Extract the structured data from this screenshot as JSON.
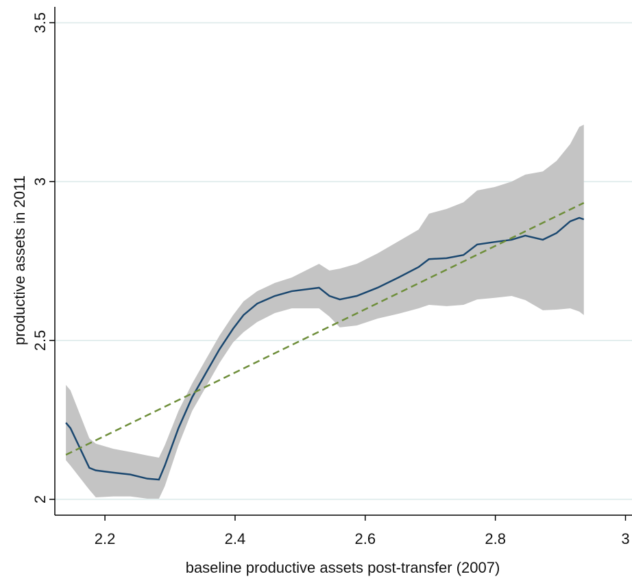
{
  "chart_data": {
    "type": "line",
    "x_label": "baseline productive assets post-transfer (2007)",
    "y_label": "productive assets in 2011",
    "x": [
      2.14,
      2.147,
      2.176,
      2.186,
      2.213,
      2.239,
      2.265,
      2.283,
      2.292,
      2.313,
      2.334,
      2.355,
      2.376,
      2.397,
      2.413,
      2.434,
      2.461,
      2.487,
      2.529,
      2.545,
      2.561,
      2.587,
      2.619,
      2.651,
      2.682,
      2.698,
      2.725,
      2.751,
      2.772,
      2.799,
      2.825,
      2.846,
      2.873,
      2.894,
      2.915,
      2.929,
      2.936
    ],
    "series": [
      {
        "color": "#1a476f",
        "values": [
          2.241,
          2.224,
          2.099,
          2.091,
          2.084,
          2.078,
          2.065,
          2.062,
          2.106,
          2.224,
          2.321,
          2.397,
          2.472,
          2.537,
          2.58,
          2.616,
          2.64,
          2.655,
          2.666,
          2.64,
          2.629,
          2.64,
          2.666,
          2.698,
          2.731,
          2.756,
          2.759,
          2.769,
          2.802,
          2.81,
          2.817,
          2.83,
          2.817,
          2.838,
          2.875,
          2.886,
          2.881
        ]
      }
    ],
    "band": {
      "color": "#c4c4c4",
      "upper": [
        2.36,
        2.343,
        2.192,
        2.175,
        2.159,
        2.149,
        2.138,
        2.131,
        2.17,
        2.278,
        2.364,
        2.44,
        2.515,
        2.58,
        2.623,
        2.655,
        2.681,
        2.698,
        2.741,
        2.72,
        2.726,
        2.741,
        2.774,
        2.812,
        2.849,
        2.899,
        2.914,
        2.935,
        2.972,
        2.983,
        3.0,
        3.022,
        3.032,
        3.065,
        3.118,
        3.172,
        3.179
      ],
      "lower": [
        2.123,
        2.106,
        2.03,
        2.006,
        2.009,
        2.009,
        2.002,
        2.002,
        2.041,
        2.17,
        2.278,
        2.353,
        2.429,
        2.494,
        2.526,
        2.558,
        2.586,
        2.601,
        2.601,
        2.575,
        2.541,
        2.547,
        2.569,
        2.584,
        2.601,
        2.612,
        2.608,
        2.612,
        2.629,
        2.634,
        2.64,
        2.627,
        2.595,
        2.597,
        2.601,
        2.591,
        2.58
      ]
    },
    "fit": {
      "color": "#6e8e3a",
      "x": [
        2.14,
        2.936
      ],
      "values": [
        2.14,
        2.933
      ]
    },
    "xlim": [
      2.123,
      3.01
    ],
    "xticks": [
      2.2,
      2.4,
      2.6,
      2.8,
      3
    ],
    "ylim": [
      1.95,
      3.55
    ],
    "yticks": [
      2,
      2.5,
      3,
      3.5
    ],
    "grid": true,
    "grid_color": "#e3eeee"
  }
}
